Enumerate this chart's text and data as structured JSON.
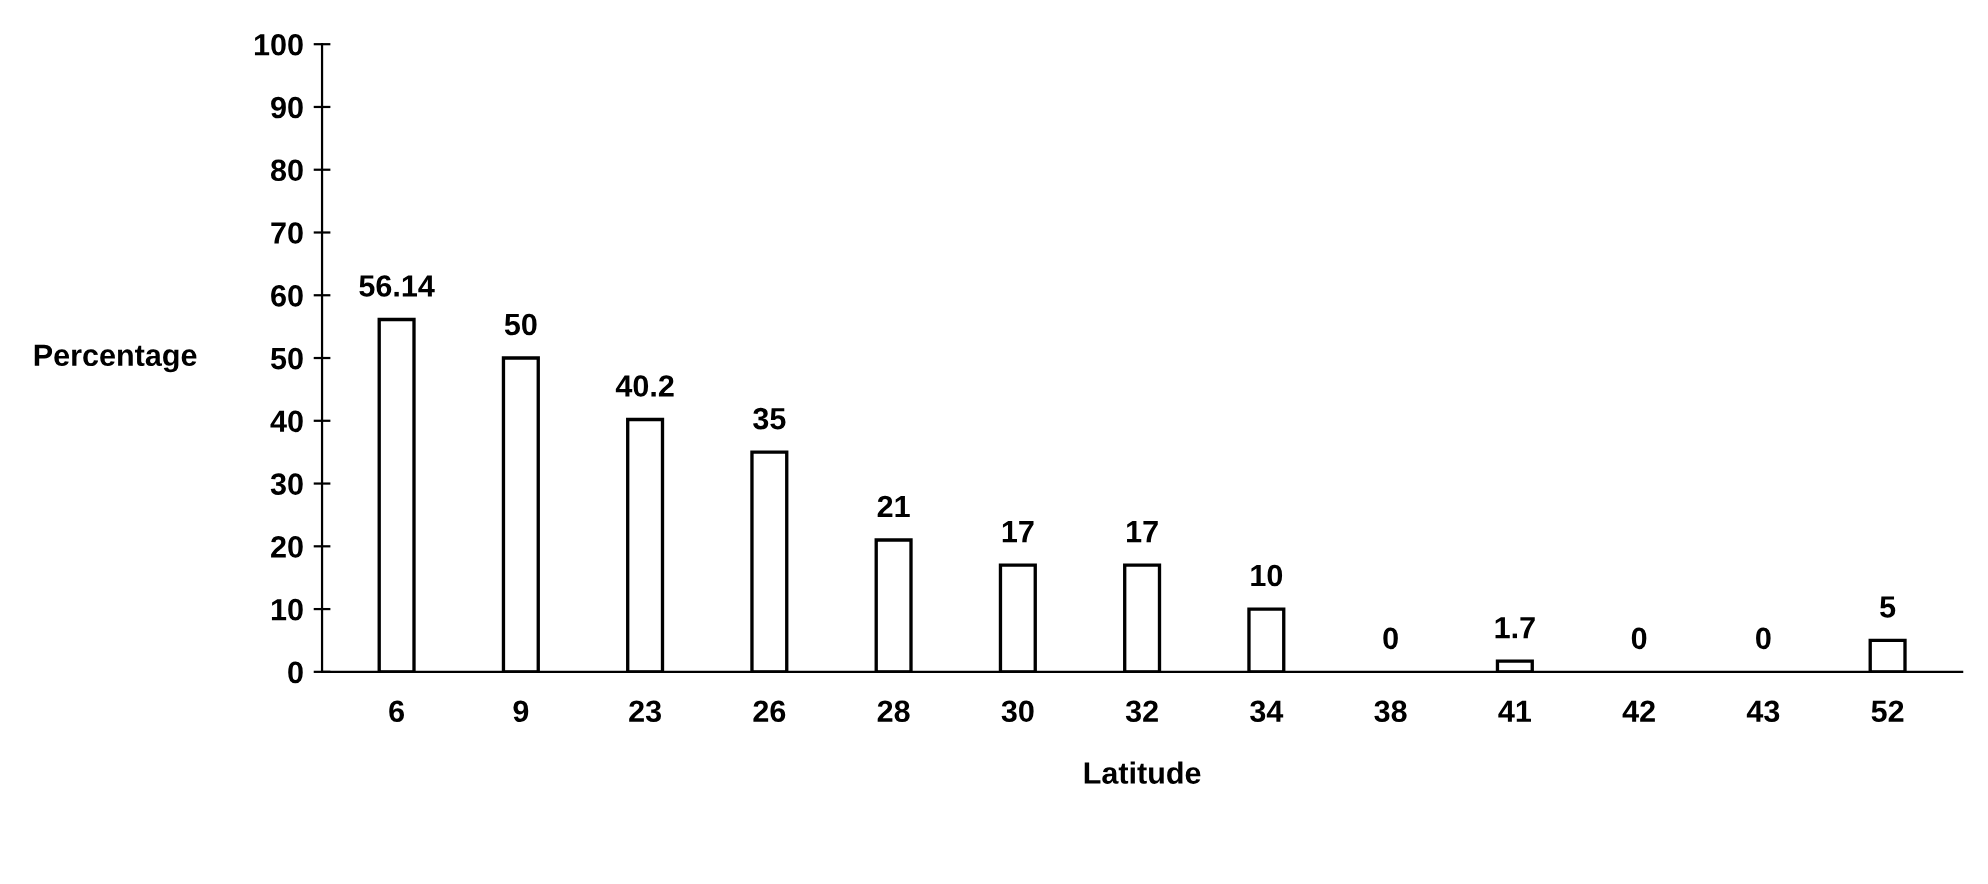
{
  "chart_data": {
    "type": "bar",
    "categories": [
      "6",
      "9",
      "23",
      "26",
      "28",
      "30",
      "32",
      "34",
      "38",
      "41",
      "42",
      "43",
      "52"
    ],
    "values": [
      56.14,
      50,
      40.2,
      35,
      21,
      17,
      17,
      10,
      0,
      1.7,
      0,
      0,
      5
    ],
    "color": "#ffffff",
    "xlabel": "Latitude",
    "ylabel": "Percentage",
    "ylim": [
      0,
      100
    ],
    "yticks": [
      0,
      10,
      20,
      30,
      40,
      50,
      60,
      70,
      80,
      90,
      100
    ],
    "data_labels": true,
    "grid": false,
    "legend": false
  }
}
